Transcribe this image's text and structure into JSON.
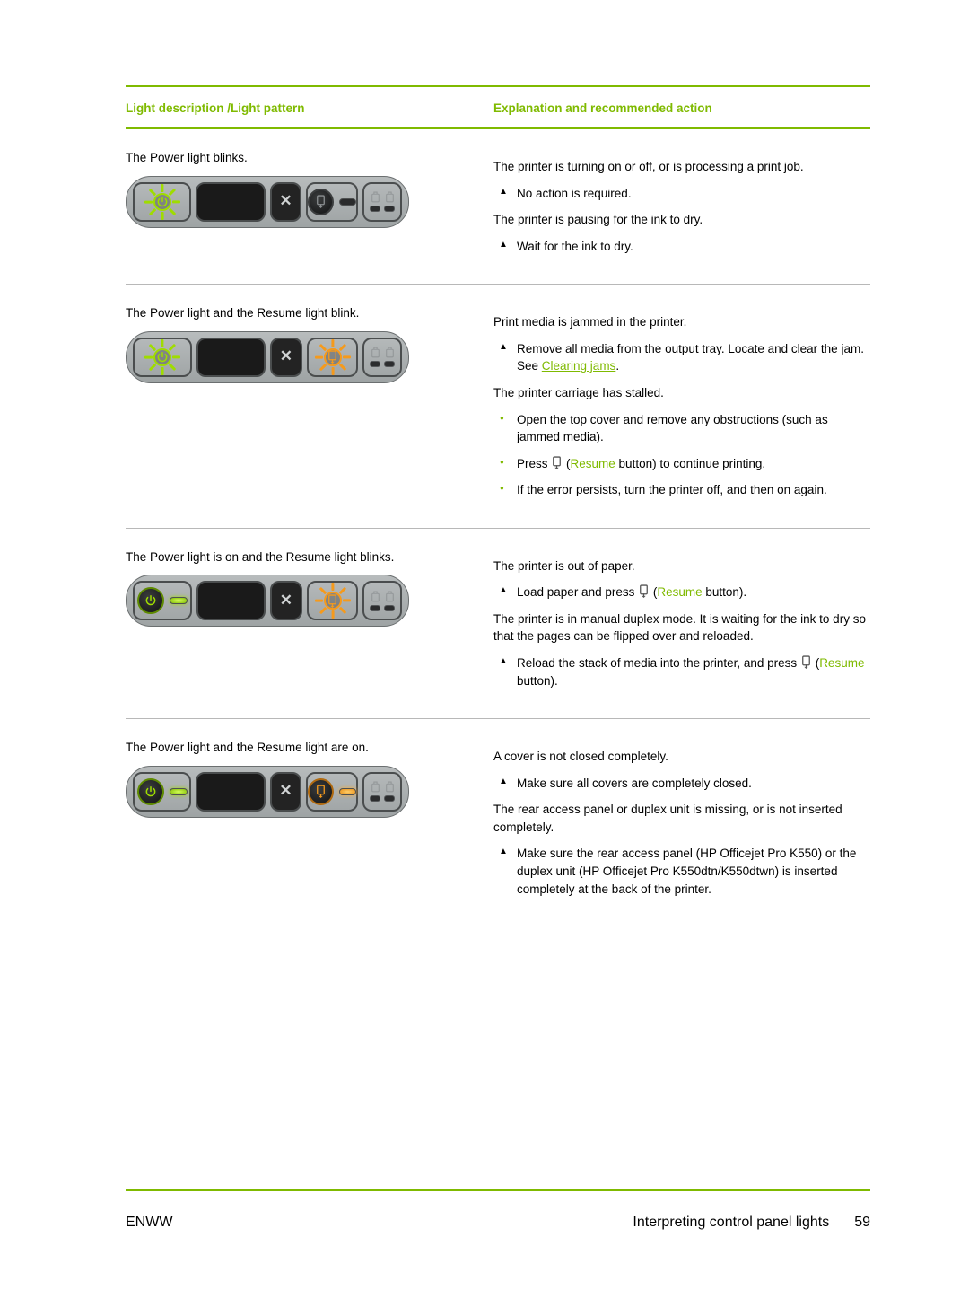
{
  "header": {
    "col1": "Light description /Light pattern",
    "col2": "Explanation and recommended action"
  },
  "rows": [
    {
      "desc": "The Power light blinks.",
      "panel": {
        "power": "blink-green",
        "resume": "off"
      },
      "blocks": [
        {
          "type": "para",
          "text": "The printer is turning on or off, or is processing a print job."
        },
        {
          "type": "tri",
          "text": "No action is required."
        },
        {
          "type": "para",
          "text": "The printer is pausing for the ink to dry."
        },
        {
          "type": "tri",
          "text": "Wait for the ink to dry."
        }
      ]
    },
    {
      "desc": "The Power light and the Resume light blink.",
      "panel": {
        "power": "blink-green",
        "resume": "blink-orange"
      },
      "blocks": [
        {
          "type": "para",
          "text": "Print media is jammed in the printer."
        },
        {
          "type": "tri",
          "text": "Remove all media from the output tray. Locate and clear the jam. See ",
          "link": "Clearing jams",
          "after": "."
        },
        {
          "type": "para",
          "text": "The printer carriage has stalled."
        },
        {
          "type": "dot",
          "text": "Open the top cover and remove any obstructions (such as jammed media)."
        },
        {
          "type": "dot",
          "resume_btn": true,
          "pre": "Press ",
          "post": " button) to continue printing.",
          "label": "Resume"
        },
        {
          "type": "dot",
          "text": "If the error persists, turn the printer off, and then on again."
        }
      ]
    },
    {
      "desc": "The Power light is on and the Resume light blinks.",
      "panel": {
        "power": "on-green",
        "resume": "blink-orange"
      },
      "blocks": [
        {
          "type": "para",
          "text": "The printer is out of paper."
        },
        {
          "type": "tri",
          "resume_btn": true,
          "pre": "Load paper and press ",
          "post": " button).",
          "label": "Resume"
        },
        {
          "type": "para",
          "text": "The printer is in manual duplex mode. It is waiting for the ink to dry so that the pages can be flipped over and reloaded."
        },
        {
          "type": "tri",
          "resume_btn": true,
          "pre": "Reload the stack of media into the printer, and press ",
          "post": " button).",
          "label": "Resume"
        }
      ]
    },
    {
      "desc": "The Power light and the Resume light are on.",
      "panel": {
        "power": "on-green",
        "resume": "on-orange"
      },
      "blocks": [
        {
          "type": "para",
          "text": "A cover is not closed completely."
        },
        {
          "type": "tri",
          "text": "Make sure all covers are completely closed."
        },
        {
          "type": "para",
          "text": "The rear access panel or duplex unit is missing, or is not inserted completely."
        },
        {
          "type": "tri",
          "text": "Make sure the rear access panel (HP Officejet Pro K550) or the duplex unit (HP Officejet Pro K550dtn/K550dtwn) is inserted completely at the back of the printer."
        }
      ]
    }
  ],
  "footer": {
    "left": "ENWW",
    "title": "Interpreting control panel lights",
    "page": "59"
  },
  "colors": {
    "accent": "#7fba00",
    "orange": "#f59a1c"
  }
}
